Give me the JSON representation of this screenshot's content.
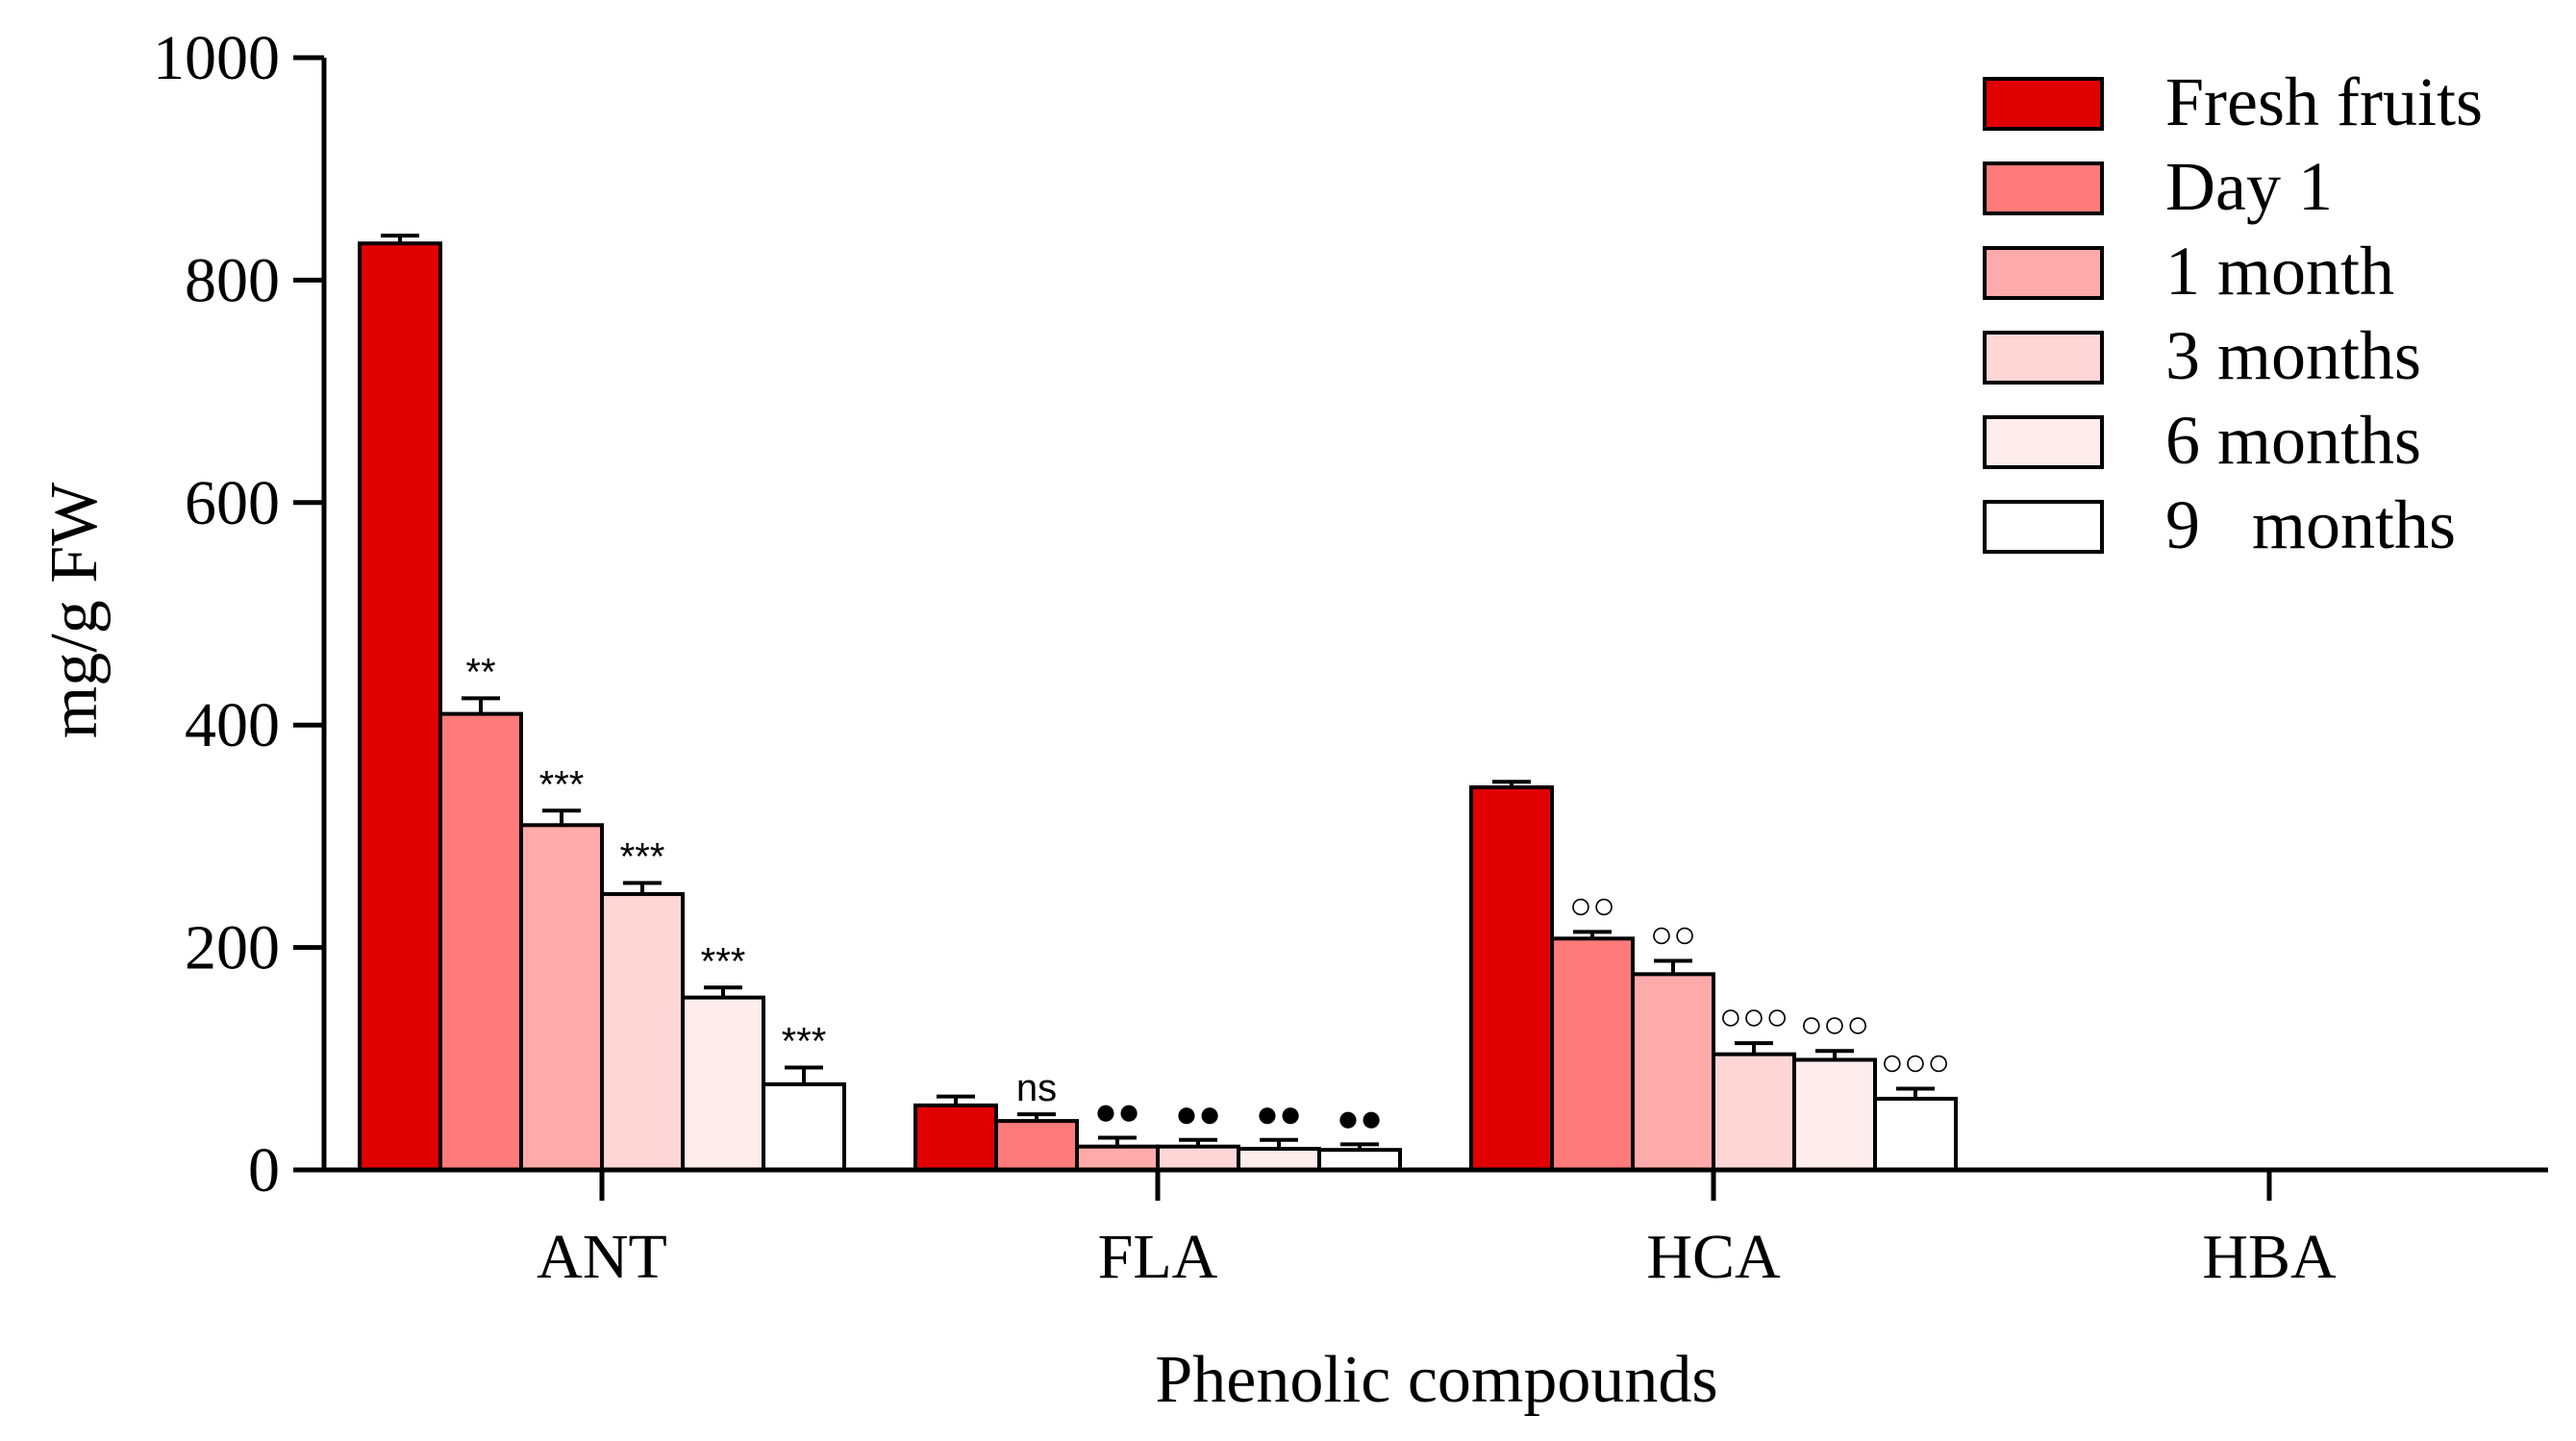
{
  "chart_data": {
    "type": "bar",
    "title": "",
    "xlabel": "Phenolic compounds",
    "ylabel": "mg/g FW",
    "ylim": [
      0,
      1000
    ],
    "yticks": [
      "0",
      "200",
      "400",
      "600",
      "800",
      "1000"
    ],
    "categories": [
      "ANT",
      "FLA",
      "HCA",
      "HBA"
    ],
    "legend_position": "top-right",
    "series": [
      {
        "name": "Fresh fruits",
        "color": "#e00000",
        "values": [
          833,
          58,
          344,
          0
        ],
        "errors": [
          7,
          8,
          5,
          0
        ],
        "annotations": [
          "",
          "",
          "",
          ""
        ]
      },
      {
        "name": "Day 1",
        "color": "#ff7b7b",
        "values": [
          410,
          44,
          208,
          0
        ],
        "errors": [
          14,
          6,
          6,
          0
        ],
        "annotations": [
          "**",
          "ns",
          "○○",
          ""
        ]
      },
      {
        "name": "1 month",
        "color": "#ffaaaa",
        "values": [
          310,
          21,
          176,
          0
        ],
        "errors": [
          13,
          8,
          12,
          0
        ],
        "annotations": [
          "***",
          "●●",
          "○○",
          ""
        ]
      },
      {
        "name": "3 months",
        "color": "#ffd6d6",
        "values": [
          248,
          21,
          104,
          0
        ],
        "errors": [
          10,
          6,
          10,
          0
        ],
        "annotations": [
          "***",
          "●●",
          "○○○",
          ""
        ]
      },
      {
        "name": "6 months",
        "color": "#ffecec",
        "values": [
          155,
          19,
          99,
          0
        ],
        "errors": [
          9,
          8,
          8,
          0
        ],
        "annotations": [
          "***",
          "●●",
          "○○○",
          ""
        ]
      },
      {
        "name": "9   months",
        "color": "#ffffff",
        "values": [
          77,
          18,
          64,
          0
        ],
        "errors": [
          15,
          5,
          9,
          0
        ],
        "annotations": [
          "***",
          "●●",
          "○○○",
          ""
        ]
      }
    ]
  }
}
